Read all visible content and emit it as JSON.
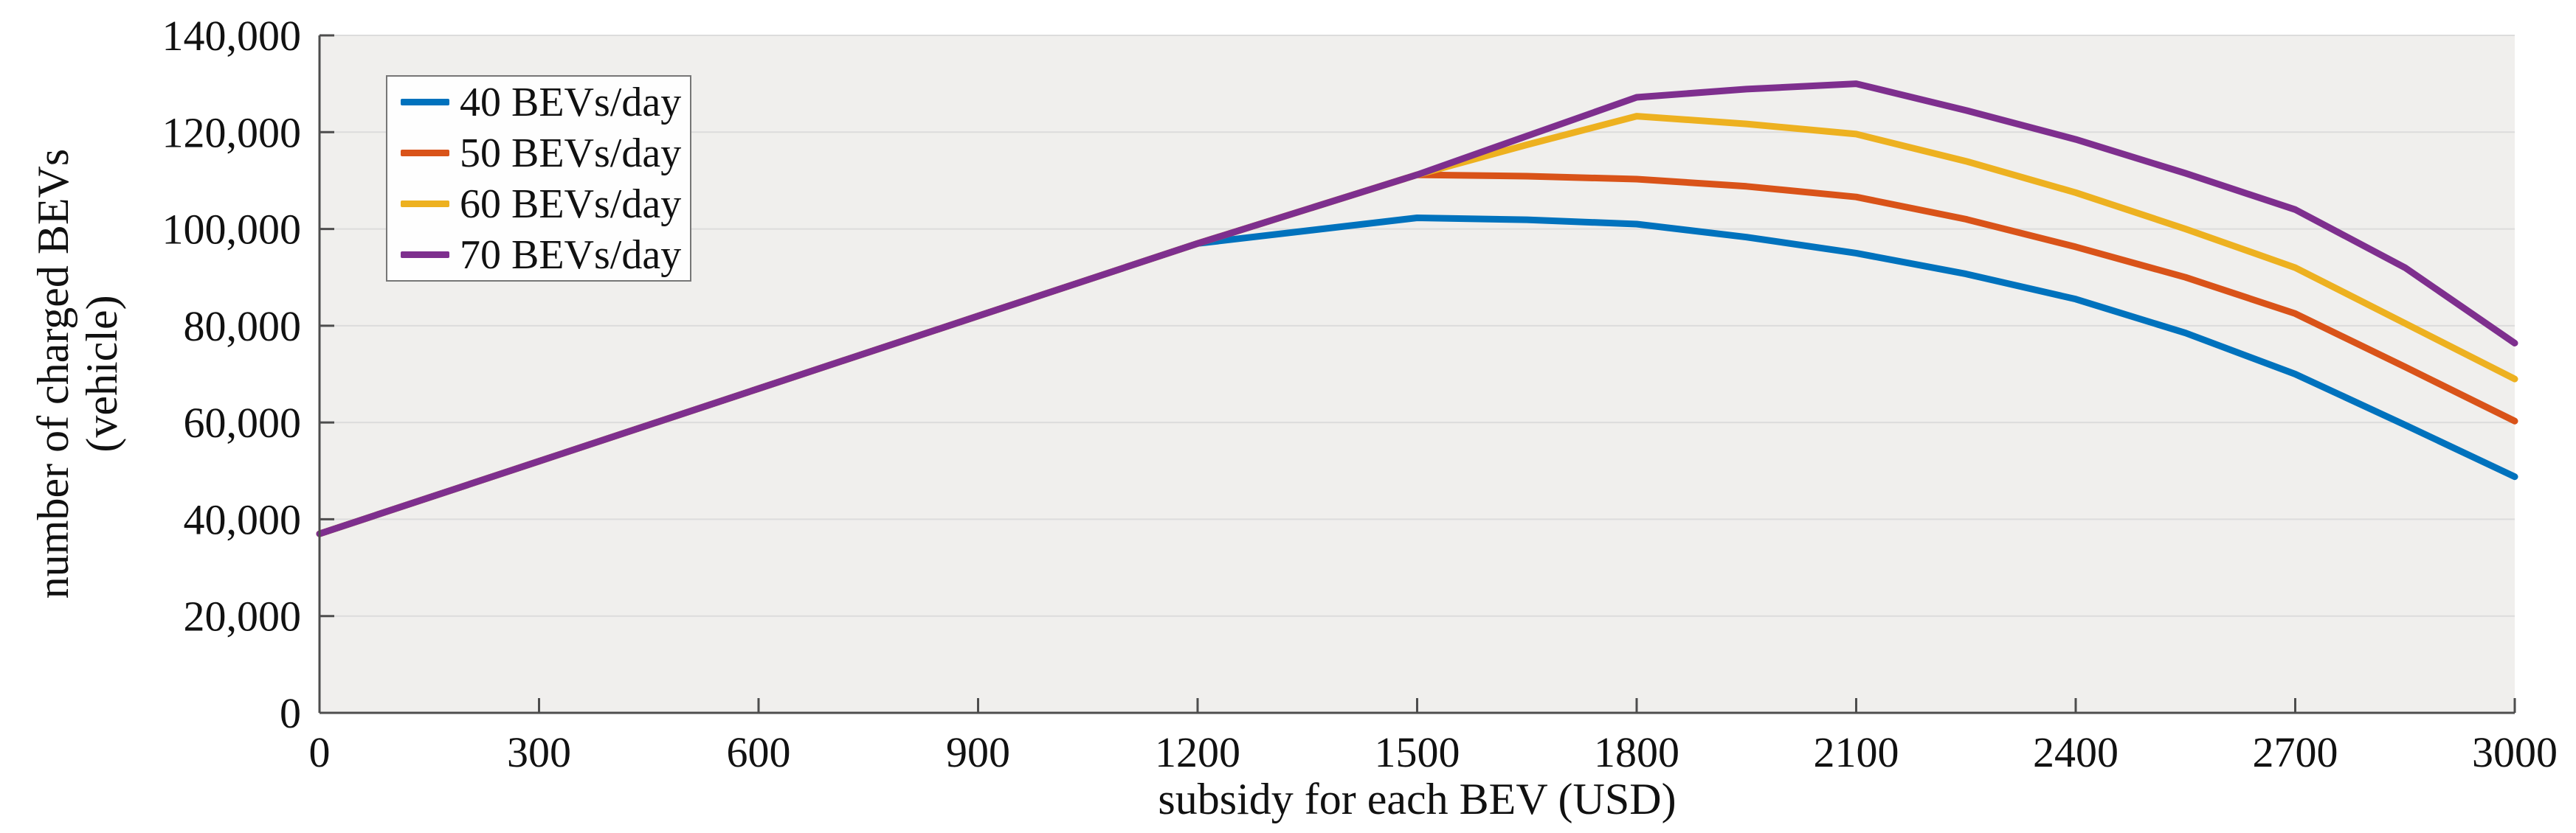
{
  "chart_data": {
    "type": "line",
    "title": "",
    "xlabel": "subsidy for each BEV (USD)",
    "ylabel_line1": "number of charged BEVs",
    "ylabel_line2": "(vehicle)",
    "xlim": [
      0,
      3000
    ],
    "ylim": [
      0,
      140000
    ],
    "xticks": [
      0,
      300,
      600,
      900,
      1200,
      1500,
      1800,
      2100,
      2400,
      2700,
      3000
    ],
    "yticks": [
      0,
      20000,
      40000,
      60000,
      80000,
      100000,
      120000,
      140000
    ],
    "ytick_labels": [
      "0",
      "20,000",
      "40,000",
      "60,000",
      "80,000",
      "100,000",
      "120,000",
      "140,000"
    ],
    "grid": "horizontal-only",
    "legend_position": "upper-left",
    "plot_bg": "#F0EFED",
    "grid_color": "#DCDCDC",
    "axis_color": "#4D4D4D",
    "text_color": "#111111",
    "x": [
      0,
      300,
      600,
      900,
      1200,
      1500,
      1650,
      1800,
      1950,
      2100,
      2250,
      2400,
      2550,
      2700,
      2850,
      3000
    ],
    "series": [
      {
        "name": "40 BEVs/day",
        "color": "#0072BD",
        "values": [
          37000,
          52000,
          67000,
          82000,
          97000,
          102300,
          101900,
          101000,
          98300,
          95000,
          90700,
          85500,
          78500,
          70000,
          59500,
          48800
        ]
      },
      {
        "name": "50 BEVs/day",
        "color": "#D95319",
        "values": [
          37000,
          52000,
          67000,
          82000,
          97000,
          111200,
          110900,
          110300,
          108800,
          106600,
          102000,
          96300,
          90000,
          82500,
          71500,
          60300
        ]
      },
      {
        "name": "60 BEVs/day",
        "color": "#EDB120",
        "values": [
          37000,
          52000,
          67000,
          82000,
          97000,
          111200,
          117400,
          123300,
          121700,
          119600,
          114000,
          107500,
          100000,
          92000,
          80500,
          69000
        ]
      },
      {
        "name": "70 BEVs/day",
        "color": "#7E2F8E",
        "values": [
          37000,
          52000,
          67000,
          82000,
          97000,
          111200,
          119200,
          127200,
          128900,
          130000,
          124500,
          118500,
          111500,
          104000,
          92000,
          76400
        ]
      }
    ]
  }
}
